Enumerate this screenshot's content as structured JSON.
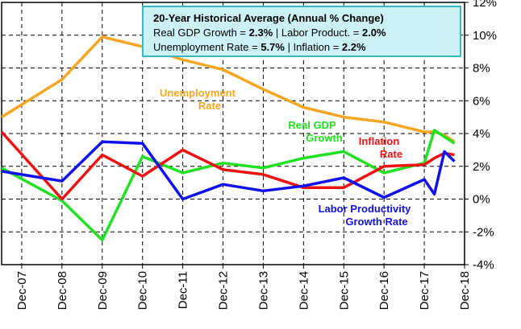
{
  "chart_data": {
    "type": "line",
    "info_box": {
      "title": "20-Year Historical Average (Annual % Change)",
      "lines": [
        [
          "Real GDP Growth = ",
          "2.3%",
          " | Labor Product. = ",
          "2.0%"
        ],
        [
          "Unemployment  Rate = ",
          "5.7%",
          " | Inflation = ",
          "2.2%"
        ]
      ]
    },
    "xlim": [
      -0.5,
      11
    ],
    "ylim": [
      -4,
      12
    ],
    "xticks": [
      {
        "value": 0,
        "label": "Dec-07"
      },
      {
        "value": 1,
        "label": "Dec-08"
      },
      {
        "value": 2,
        "label": "Dec-09"
      },
      {
        "value": 3,
        "label": "Dec-10"
      },
      {
        "value": 4,
        "label": "Dec-11"
      },
      {
        "value": 5,
        "label": "Dec-12"
      },
      {
        "value": 6,
        "label": "Dec-13"
      },
      {
        "value": 7,
        "label": "Dec-14"
      },
      {
        "value": 8,
        "label": "Dec-15"
      },
      {
        "value": 9,
        "label": "Dec-16"
      },
      {
        "value": 10,
        "label": "Dec-17"
      },
      {
        "value": 11,
        "label": "Dec-18"
      }
    ],
    "yticks": [
      {
        "value": -4,
        "label": "-4%"
      },
      {
        "value": -2,
        "label": "-2%"
      },
      {
        "value": 0,
        "label": "0%"
      },
      {
        "value": 2,
        "label": "2%"
      },
      {
        "value": 4,
        "label": "4%"
      },
      {
        "value": 6,
        "label": "6%"
      },
      {
        "value": 8,
        "label": "8%"
      },
      {
        "value": 10,
        "label": "10%"
      },
      {
        "value": 12,
        "label": "12%"
      }
    ],
    "grid": true,
    "series": [
      {
        "label": [
          "Unemployment",
          "Rate"
        ],
        "color": "#f5a623",
        "x": [
          -0.5,
          1,
          2,
          3,
          4,
          5,
          6,
          7,
          8,
          9,
          10,
          10.25,
          10.5,
          10.75
        ],
        "values": [
          5.0,
          7.3,
          9.9,
          9.3,
          8.5,
          7.9,
          6.7,
          5.6,
          5.0,
          4.7,
          4.1,
          4.1,
          3.9,
          3.5
        ]
      },
      {
        "label": [
          "Real GDP",
          "Growth"
        ],
        "color": "#22e022",
        "x": [
          -0.5,
          1,
          2,
          3,
          4,
          5,
          6,
          7,
          8,
          9,
          10,
          10.25,
          10.75
        ],
        "values": [
          1.9,
          -0.1,
          -2.5,
          2.6,
          1.6,
          2.2,
          1.9,
          2.5,
          2.9,
          1.6,
          2.2,
          4.2,
          3.4
        ]
      },
      {
        "label": [
          "Inflation",
          "Rate"
        ],
        "color": "#ee1111",
        "x": [
          -0.5,
          1,
          2,
          3,
          4,
          5,
          6,
          7,
          8,
          9,
          10,
          10.25,
          10.5,
          10.75
        ],
        "values": [
          4.1,
          0.0,
          2.7,
          1.4,
          3.0,
          1.8,
          1.5,
          0.7,
          0.7,
          2.0,
          2.1,
          2.5,
          2.8,
          2.7
        ]
      },
      {
        "label": [
          "Labor Productivity",
          "Growth Rate"
        ],
        "color": "#1111ee",
        "x": [
          -0.5,
          1,
          2,
          3,
          4,
          5,
          6,
          7,
          8,
          9,
          10,
          10.25,
          10.5,
          10.75
        ],
        "values": [
          1.7,
          1.1,
          3.5,
          3.4,
          0.0,
          0.9,
          0.5,
          0.8,
          1.3,
          0.1,
          1.2,
          0.3,
          2.9,
          2.3
        ]
      }
    ]
  }
}
